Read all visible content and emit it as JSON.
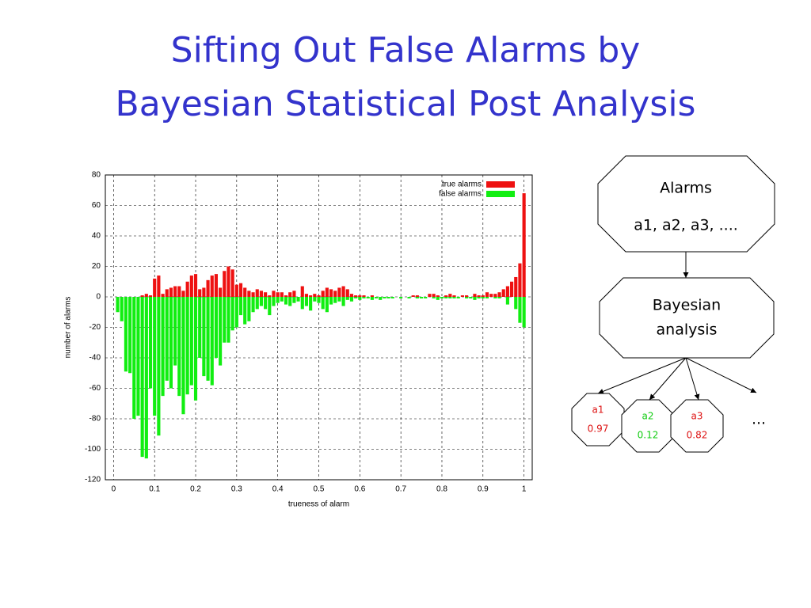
{
  "title": [
    "Sifting Out False Alarms by",
    "Bayesian Statistical Post Analysis"
  ],
  "chart_data": {
    "type": "bar",
    "x_label": "trueness of alarm",
    "y_label": "number of alarms",
    "x": [
      0.01,
      0.02,
      0.03,
      0.04,
      0.05,
      0.06,
      0.07,
      0.08,
      0.09,
      0.1,
      0.11,
      0.12,
      0.13,
      0.14,
      0.15,
      0.16,
      0.17,
      0.18,
      0.19,
      0.2,
      0.21,
      0.22,
      0.23,
      0.24,
      0.25,
      0.26,
      0.27,
      0.28,
      0.29,
      0.3,
      0.31,
      0.32,
      0.33,
      0.34,
      0.35,
      0.36,
      0.37,
      0.38,
      0.39,
      0.4,
      0.41,
      0.42,
      0.43,
      0.44,
      0.45,
      0.46,
      0.47,
      0.48,
      0.49,
      0.5,
      0.51,
      0.52,
      0.53,
      0.54,
      0.55,
      0.56,
      0.57,
      0.58,
      0.59,
      0.6,
      0.61,
      0.62,
      0.63,
      0.64,
      0.65,
      0.66,
      0.67,
      0.68,
      0.69,
      0.7,
      0.71,
      0.72,
      0.73,
      0.74,
      0.75,
      0.76,
      0.77,
      0.78,
      0.79,
      0.8,
      0.81,
      0.82,
      0.83,
      0.84,
      0.85,
      0.86,
      0.87,
      0.88,
      0.89,
      0.9,
      0.91,
      0.92,
      0.93,
      0.94,
      0.95,
      0.96,
      0.97,
      0.98,
      0.99,
      1.0
    ],
    "series": [
      {
        "name": "true alarms",
        "color": "#ee1111",
        "values": [
          0,
          0,
          0,
          0,
          0,
          0,
          1,
          2,
          1,
          12,
          14,
          2,
          5,
          6,
          7,
          7,
          4,
          10,
          14,
          15,
          5,
          6,
          11,
          14,
          15,
          6,
          17,
          20,
          18,
          8,
          9,
          6,
          4,
          3,
          5,
          4,
          3,
          1,
          4,
          3,
          3,
          1,
          3,
          4,
          0,
          7,
          2,
          1,
          2,
          1,
          4,
          6,
          5,
          4,
          6,
          7,
          5,
          2,
          1,
          1,
          1,
          0,
          1,
          0,
          0,
          0,
          0,
          0,
          0,
          0,
          0,
          0,
          1,
          1,
          0,
          0,
          2,
          2,
          1,
          0,
          1,
          2,
          1,
          0,
          1,
          1,
          0,
          2,
          1,
          1,
          3,
          2,
          2,
          3,
          5,
          7,
          10,
          13,
          22,
          68
        ]
      },
      {
        "name": "false alarms",
        "color": "#11ee11",
        "values": [
          -10,
          -16,
          -49,
          -50,
          -80,
          -78,
          -105,
          -106,
          -60,
          -78,
          -91,
          -65,
          -55,
          -60,
          -45,
          -65,
          -77,
          -64,
          -58,
          -68,
          -40,
          -52,
          -55,
          -58,
          -40,
          -45,
          -30,
          -30,
          -22,
          -20,
          -12,
          -18,
          -16,
          -10,
          -8,
          -6,
          -8,
          -12,
          -6,
          -4,
          -3,
          -5,
          -6,
          -4,
          -3,
          -8,
          -6,
          -9,
          -3,
          -4,
          -8,
          -10,
          -5,
          -4,
          -3,
          -6,
          -2,
          -3,
          -1,
          -2,
          -1,
          -1,
          -2,
          -1,
          -2,
          -1,
          -1,
          -1,
          0,
          -1,
          0,
          -1,
          0,
          -1,
          -1,
          -1,
          0,
          -1,
          -2,
          -1,
          -1,
          -1,
          -1,
          -1,
          0,
          -1,
          -1,
          -2,
          -1,
          -1,
          -1,
          0,
          -1,
          -1,
          0,
          -5,
          0,
          -8,
          -17,
          -20
        ]
      }
    ],
    "xlim": [
      -0.02,
      1.02
    ],
    "ylim": [
      -120,
      80
    ],
    "xticks": [
      0,
      0.1,
      0.2,
      0.3,
      0.4,
      0.5,
      0.6,
      0.7,
      0.8,
      0.9,
      1
    ],
    "yticks": [
      -120,
      -100,
      -80,
      -60,
      -40,
      -20,
      0,
      20,
      40,
      60,
      80
    ],
    "grid": true,
    "legend": "top-right"
  },
  "diagram": {
    "alarms": {
      "label": "Alarms",
      "list": "a1, a2, a3, ...."
    },
    "analysis": {
      "line1": "Bayesian",
      "line2": "analysis"
    },
    "results": [
      {
        "label": "a1",
        "score": "0.97",
        "color": "#dd1111"
      },
      {
        "label": "a2",
        "score": "0.12",
        "color": "#11cc11"
      },
      {
        "label": "a3",
        "score": "0.82",
        "color": "#dd1111"
      }
    ],
    "more": "..."
  }
}
